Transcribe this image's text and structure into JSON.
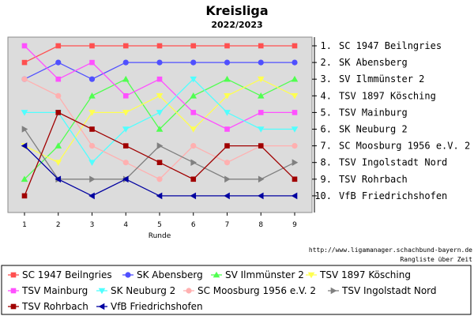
{
  "chart_data": {
    "type": "line",
    "title": "Kreisliga",
    "subtitle": "2022/2023",
    "xlabel": "Runde",
    "x": [
      1,
      2,
      3,
      4,
      5,
      6,
      7,
      8,
      9
    ],
    "ylim": [
      1,
      10
    ],
    "y_inverted": true,
    "grid": false,
    "rank_labels": [
      "1. SC 1947 Beilngries",
      "2. SK Abensberg",
      "3. SV Ilmmünster 2",
      "4. TSV 1897 Kösching",
      "5. TSV Mainburg",
      "6. SK Neuburg 2",
      "7. SC Moosburg 1956 e.V. 2",
      "8. TSV Ingolstadt Nord",
      "9. TSV Rohrbach",
      "10. VfB Friedrichshofen"
    ],
    "source_text": "http://www.ligamanager.schachbund-bayern.de",
    "caption": "Rangliste über Zeit",
    "legend_position": "bottom",
    "series": [
      {
        "name": "SC 1947 Beilngries",
        "color": "#ff5050",
        "marker": "square",
        "values": [
          2,
          1,
          1,
          1,
          1,
          1,
          1,
          1,
          1
        ]
      },
      {
        "name": "SK Abensberg",
        "color": "#5050ff",
        "marker": "circle",
        "values": [
          3,
          2,
          3,
          2,
          2,
          2,
          2,
          2,
          2
        ]
      },
      {
        "name": "SV Ilmmünster 2",
        "color": "#50ff50",
        "marker": "triangle-up",
        "values": [
          9,
          7,
          4,
          3,
          6,
          4,
          3,
          4,
          3
        ]
      },
      {
        "name": "TSV 1897 Kösching",
        "color": "#ffff50",
        "marker": "triangle-down",
        "values": [
          7,
          8,
          5,
          5,
          4,
          6,
          4,
          3,
          4
        ]
      },
      {
        "name": "TSV Mainburg",
        "color": "#ff50ff",
        "marker": "square",
        "values": [
          1,
          3,
          2,
          4,
          3,
          5,
          6,
          5,
          5
        ]
      },
      {
        "name": "SK Neuburg 2",
        "color": "#50ffff",
        "marker": "triangle-down",
        "values": [
          5,
          5,
          8,
          6,
          5,
          3,
          5,
          6,
          6
        ]
      },
      {
        "name": "SC Moosburg 1956 e.V. 2",
        "color": "#ffb0b0",
        "marker": "circle",
        "values": [
          3,
          4,
          7,
          8,
          9,
          7,
          8,
          7,
          7
        ]
      },
      {
        "name": "TSV Ingolstadt Nord",
        "color": "#808080",
        "marker": "triangle-right",
        "values": [
          6,
          9,
          9,
          9,
          7,
          8,
          9,
          9,
          8
        ]
      },
      {
        "name": "TSV Rohrbach",
        "color": "#a00000",
        "marker": "square",
        "values": [
          10,
          5,
          6,
          7,
          8,
          9,
          7,
          7,
          9
        ]
      },
      {
        "name": "VfB Friedrichshofen",
        "color": "#0000a0",
        "marker": "triangle-left",
        "values": [
          7,
          9,
          10,
          9,
          10,
          10,
          10,
          10,
          10
        ]
      }
    ]
  }
}
